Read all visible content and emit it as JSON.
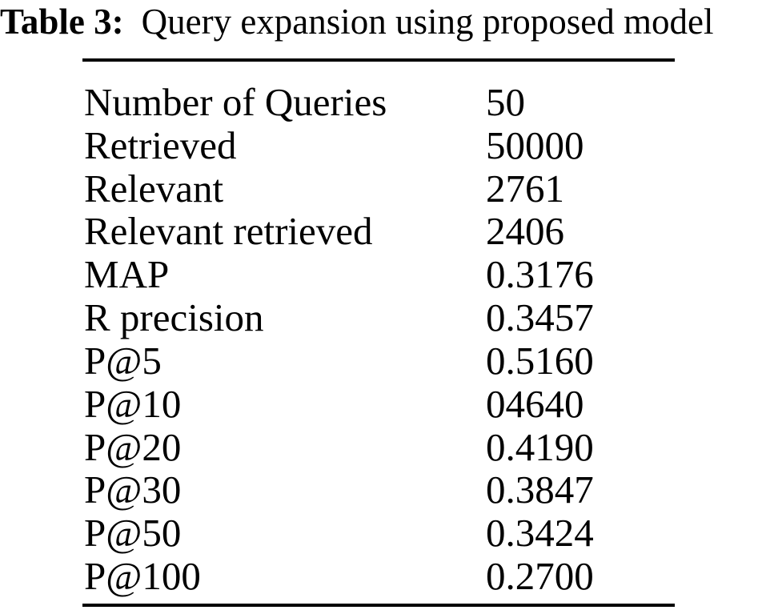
{
  "caption": {
    "label": "Table 3:",
    "text": "Query expansion using proposed model"
  },
  "table": {
    "rows": [
      {
        "label": "Number of Queries",
        "value": "50"
      },
      {
        "label": "Retrieved",
        "value": "50000"
      },
      {
        "label": "Relevant",
        "value": "2761"
      },
      {
        "label": "Relevant retrieved",
        "value": "2406"
      },
      {
        "label": "MAP",
        "value": "0.3176"
      },
      {
        "label": "R precision",
        "value": "0.3457"
      },
      {
        "label": "P@5",
        "value": "0.5160"
      },
      {
        "label": "P@10",
        "value": "04640"
      },
      {
        "label": "P@20",
        "value": "0.4190"
      },
      {
        "label": "P@30",
        "value": "0.3847"
      },
      {
        "label": "P@50",
        "value": "0.3424"
      },
      {
        "label": "P@100",
        "value": "0.2700"
      }
    ]
  },
  "colors": {
    "text": "#000000",
    "background": "#ffffff",
    "rule": "#000000"
  }
}
